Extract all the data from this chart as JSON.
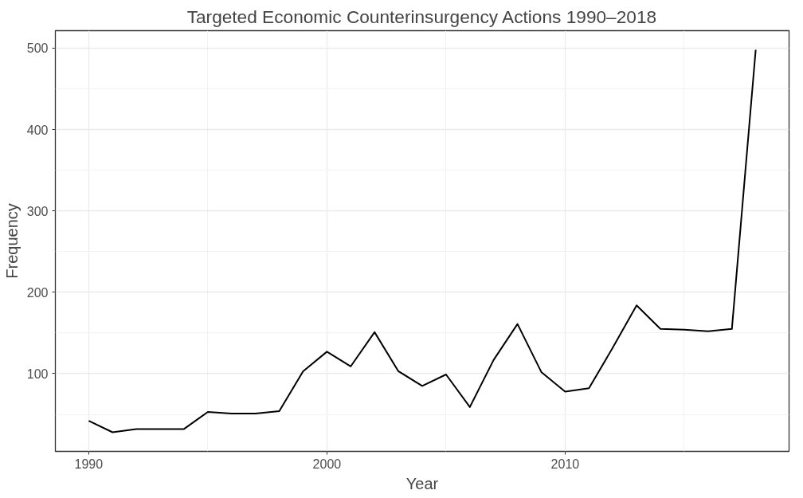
{
  "chart_data": {
    "type": "line",
    "title": "Targeted Economic Counterinsurgency Actions 1990–2018",
    "xlabel": "Year",
    "ylabel": "Frequency",
    "x": [
      1990,
      1991,
      1992,
      1993,
      1994,
      1995,
      1996,
      1997,
      1998,
      1999,
      2000,
      2001,
      2002,
      2003,
      2004,
      2005,
      2006,
      2007,
      2008,
      2009,
      2010,
      2011,
      2012,
      2013,
      2014,
      2015,
      2016,
      2017,
      2018
    ],
    "series": [
      {
        "color": "#000000",
        "values": [
          42,
          28,
          32,
          32,
          32,
          53,
          51,
          51,
          54,
          103,
          127,
          109,
          151,
          103,
          85,
          99,
          59,
          117,
          161,
          102,
          78,
          82,
          132,
          184,
          155,
          154,
          152,
          155,
          498
        ]
      }
    ],
    "xlim": [
      1988.6,
      2019.4
    ],
    "xticks": [
      1990,
      2000,
      2010
    ],
    "ylim": [
      4.5,
      521.5
    ],
    "yticks": [
      100,
      200,
      300,
      400,
      500
    ],
    "grid": true,
    "marker": "none",
    "line_style": "solid"
  }
}
